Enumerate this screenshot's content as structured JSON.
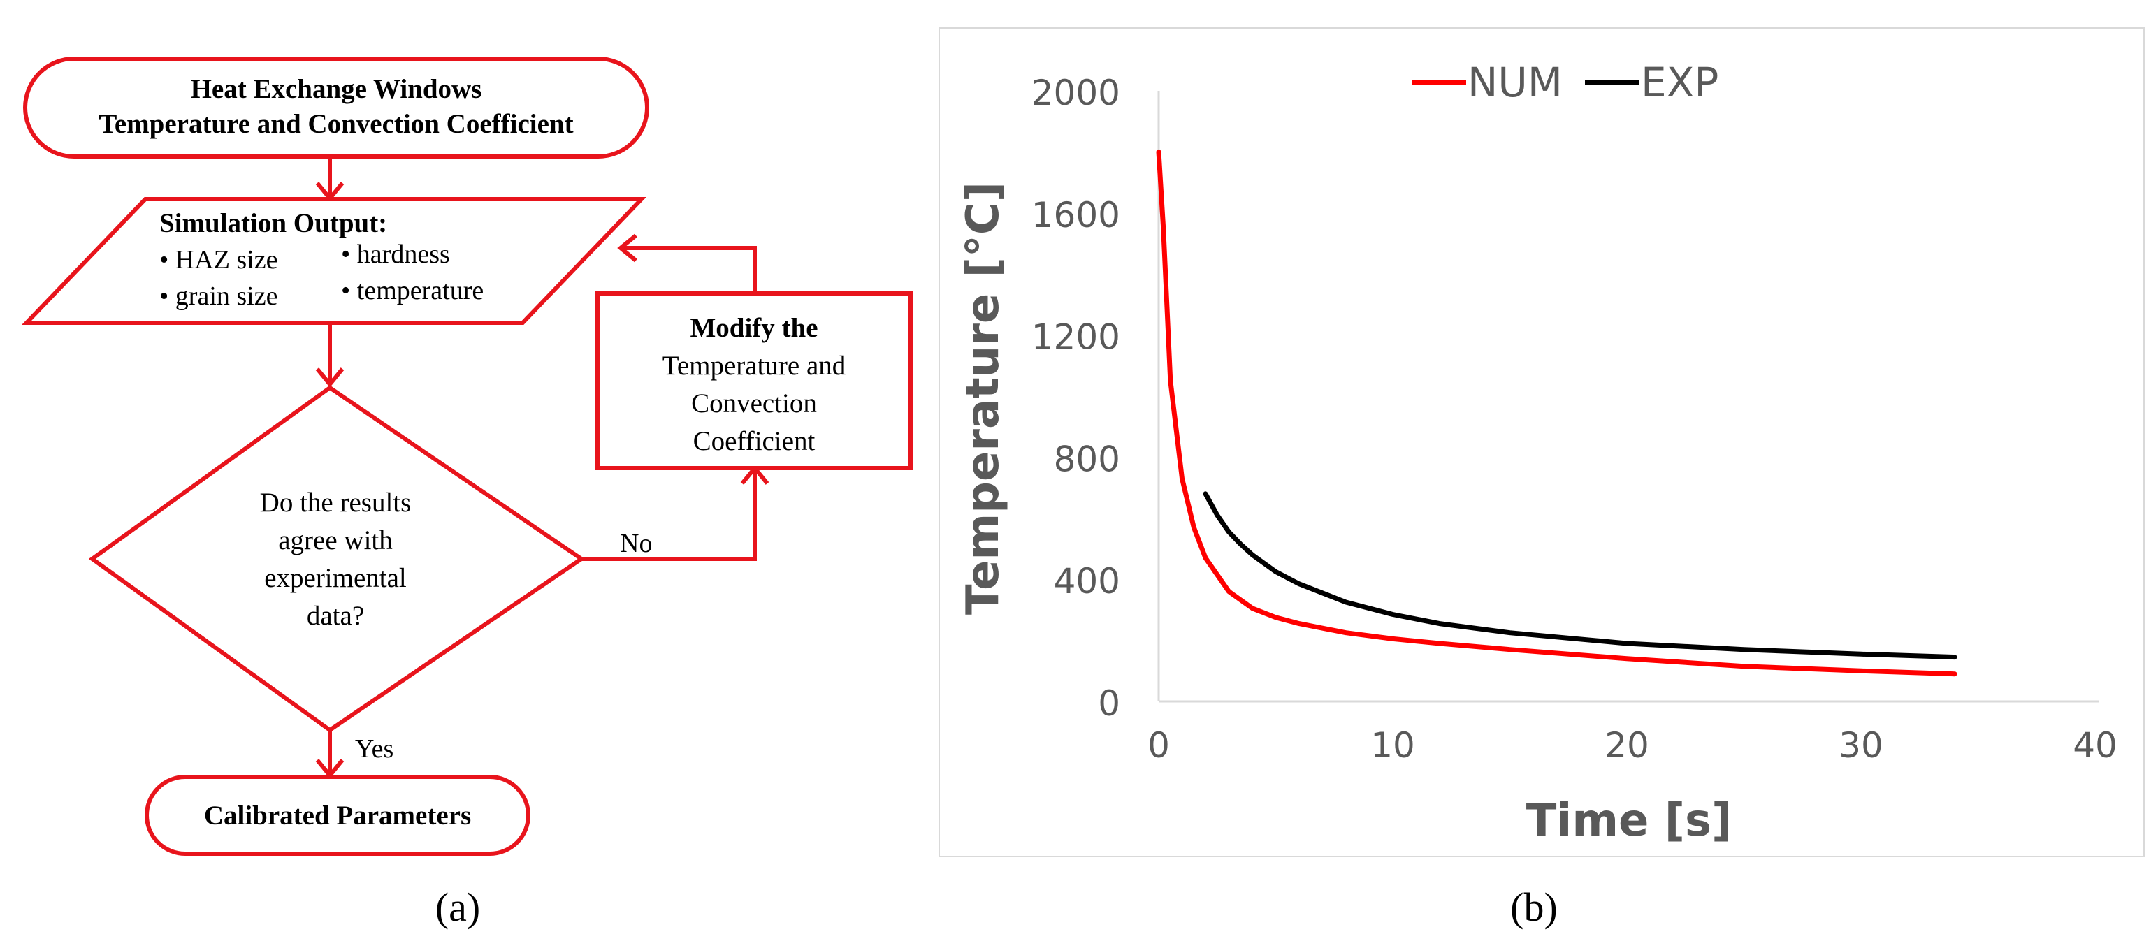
{
  "flowchart": {
    "start": {
      "line1": "Heat Exchange Windows",
      "line2": "Temperature and Convection Coefficient"
    },
    "output": {
      "heading": "Simulation Output:",
      "items": [
        "• HAZ size",
        "• hardness",
        "• grain size",
        "• temperature"
      ]
    },
    "decision": {
      "lines": [
        "Do the results",
        "agree with",
        "experimental",
        "data?"
      ]
    },
    "modify": {
      "bold": "Modify the",
      "lines": [
        "Temperature and",
        "Convection",
        "Coefficient"
      ]
    },
    "end": {
      "label": "Calibrated Parameters"
    },
    "edge_no": "No",
    "edge_yes": "Yes",
    "color": "#e8141c"
  },
  "panel_labels": {
    "a": "(a)",
    "b": "(b)"
  },
  "chart_data": {
    "type": "line",
    "xlabel": "Time [s]",
    "ylabel": "Temperature [°C]",
    "xlim": [
      0,
      40
    ],
    "ylim": [
      0,
      2000
    ],
    "xticks": [
      0,
      10,
      20,
      30,
      40
    ],
    "yticks": [
      0,
      400,
      800,
      1200,
      1600,
      2000
    ],
    "grid": false,
    "legend_position": "top-center",
    "series": [
      {
        "name": "NUM",
        "color": "#ff0000",
        "x": [
          0,
          0.2,
          0.5,
          1,
          1.5,
          2,
          3,
          4,
          5,
          6,
          8,
          10,
          12,
          15,
          20,
          25,
          30,
          34
        ],
        "y": [
          1800,
          1550,
          1050,
          730,
          570,
          470,
          360,
          305,
          275,
          255,
          225,
          205,
          190,
          170,
          140,
          115,
          100,
          90
        ]
      },
      {
        "name": "EXP",
        "color": "#000000",
        "x": [
          2,
          2.5,
          3,
          3.5,
          4,
          5,
          6,
          8,
          10,
          12,
          15,
          20,
          25,
          30,
          34
        ],
        "y": [
          680,
          610,
          555,
          515,
          480,
          425,
          385,
          325,
          285,
          255,
          225,
          190,
          170,
          155,
          145
        ]
      }
    ]
  }
}
